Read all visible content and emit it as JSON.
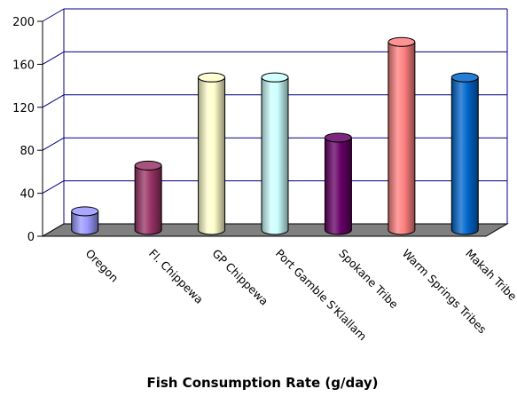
{
  "chart_data": {
    "type": "bar",
    "style": "3d-cylinder",
    "title": "",
    "xlabel": "Fish Consumption Rate (g/day)",
    "ylabel": "",
    "ylim": [
      0,
      200
    ],
    "yticks": [
      0,
      40,
      80,
      120,
      160,
      200
    ],
    "grid": true,
    "legend": "none",
    "categories": [
      "Oregon",
      "Fl. Chippewa",
      "GP Chippewa",
      "Port Gamble S'Klallam",
      "Spokane Tribe",
      "Warm Springs Tribes",
      "Makah Tribe"
    ],
    "values": [
      17.5,
      60,
      142,
      142,
      86,
      175,
      142
    ],
    "colors": [
      "#9999ff",
      "#993366",
      "#ffffcc",
      "#ccffff",
      "#660066",
      "#ff8080",
      "#0066cc"
    ],
    "floor_color": "#808080",
    "grid_color": "#000080"
  }
}
